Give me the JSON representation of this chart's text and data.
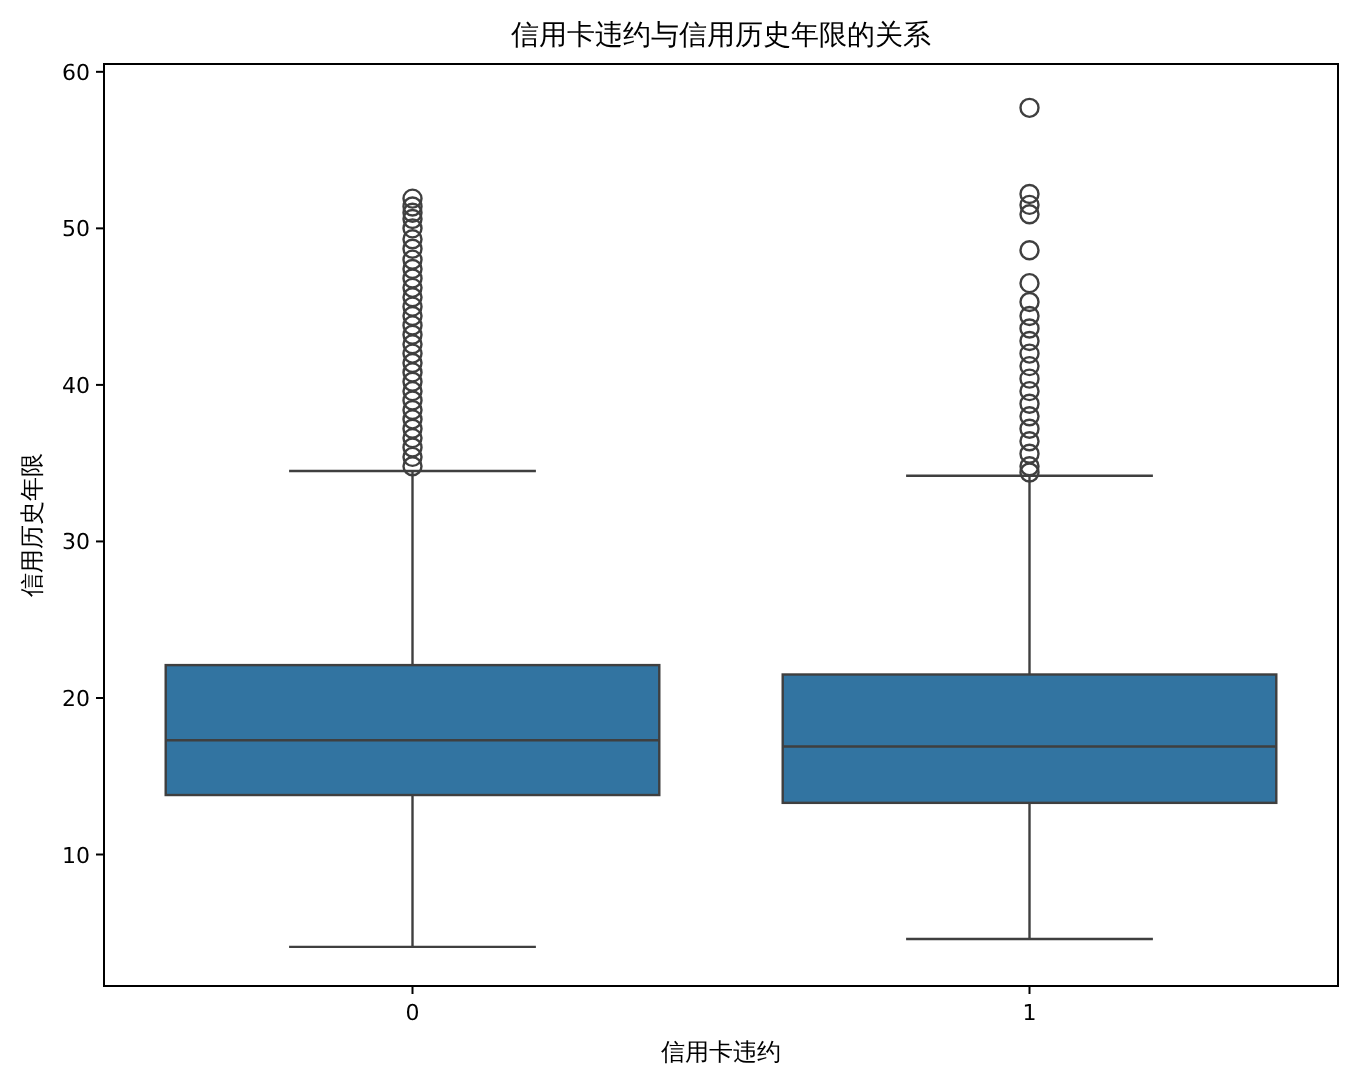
{
  "chart_data": {
    "type": "box",
    "title": "信用卡违约与信用历史年限的关系",
    "xlabel": "信用卡违约",
    "ylabel": "信用历史年限",
    "categories": [
      "0",
      "1"
    ],
    "color": "#3274a1",
    "ylim": [
      1.6,
      60.5
    ],
    "yticks": [
      10,
      20,
      30,
      40,
      50,
      60
    ],
    "grid": false,
    "marker": "circle",
    "boxes": [
      {
        "low": 4.1,
        "q1": 13.8,
        "median": 17.3,
        "q3": 22.1,
        "high": 34.5,
        "outliers": [
          51.9,
          51.4,
          51.0,
          50.6,
          50.0,
          49.3,
          48.7,
          48.0,
          47.4,
          46.8,
          46.2,
          45.6,
          45.0,
          44.4,
          43.8,
          43.2,
          42.6,
          42.0,
          41.4,
          40.8,
          40.2,
          39.6,
          39.0,
          38.4,
          37.8,
          37.2,
          36.6,
          36.0,
          35.4,
          34.8
        ]
      },
      {
        "low": 4.6,
        "q1": 13.3,
        "median": 16.9,
        "q3": 21.5,
        "high": 34.2,
        "outliers": [
          57.7,
          52.2,
          51.5,
          50.9,
          48.6,
          46.5,
          45.3,
          44.4,
          43.6,
          42.8,
          42.0,
          41.2,
          40.4,
          39.6,
          38.8,
          38.0,
          37.2,
          36.4,
          35.6,
          34.8,
          34.4
        ]
      }
    ]
  }
}
